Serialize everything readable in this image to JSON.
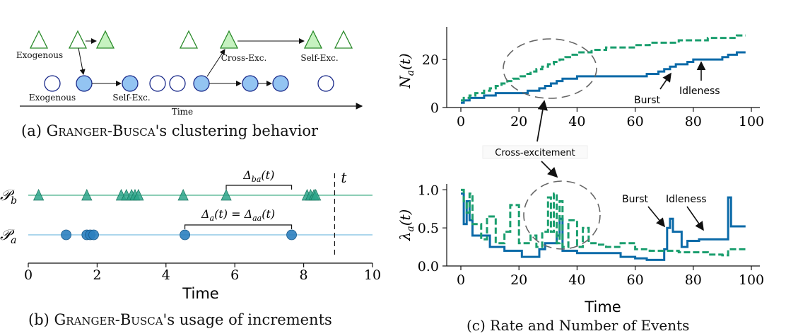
{
  "panel_a": {
    "caption_prefix": "(a)",
    "caption_name": "Granger-Busca",
    "caption_rest": "'s clustering behavior",
    "labels": {
      "exogenous_top": "Exogenous",
      "exogenous_bottom": "Exogenous",
      "self_exc_bottom": "Self-Exc.",
      "cross_exc": "Cross-Exc.",
      "self_exc_top": "Self-Exc.",
      "time": "Time"
    }
  },
  "panel_b": {
    "caption_prefix": "(b)",
    "caption_name": "Granger-Busca",
    "caption_rest": "'s usage of increments",
    "t_label": "t",
    "row_b_label": "𝒫_b",
    "row_a_label": "𝒫_a",
    "delta_b_label": "Δ_ba(t)",
    "delta_a_label": "Δ_a(t) = Δ_aa(t)",
    "xlabel": "Time",
    "xticks": [
      "0",
      "2",
      "4",
      "6",
      "8",
      "10"
    ]
  },
  "panel_c": {
    "caption": "(c) Rate and Number of Events",
    "annotation_cross": "Cross-excitement",
    "top": {
      "ylabel": "N_a(t)",
      "yticks": [
        "0",
        "20"
      ],
      "xticks": [
        "0",
        "20",
        "40",
        "60",
        "80",
        "100"
      ],
      "burst_label": "Burst",
      "idleness_label": "Idleness"
    },
    "bottom": {
      "ylabel": "λ_a(t)",
      "yticks": [
        "0.0",
        "0.5",
        "1.0"
      ],
      "xticks": [
        "0",
        "20",
        "40",
        "60",
        "80",
        "100"
      ],
      "xlabel": "Time",
      "burst_label": "Burst",
      "idleness_label": "Idleness"
    }
  },
  "colors": {
    "blue": "#1f77b4",
    "blue_dark": "#0b6aa8",
    "green": "#1a9e6e",
    "green_fill": "#c6f2c0",
    "triangle_stroke": "#2a8a2a",
    "circle_fill": "#93c4f2",
    "circle_stroke": "#1a2a8a"
  },
  "chart_data": [
    {
      "type": "scatter",
      "panel": "b",
      "xlim": [
        0,
        10
      ],
      "series": [
        {
          "name": "𝒫_b",
          "x": [
            0.3,
            1.7,
            2.7,
            2.85,
            3.0,
            3.1,
            3.2,
            4.5,
            5.75,
            8.1,
            8.2,
            8.3,
            8.35
          ]
        },
        {
          "name": "𝒫_a",
          "x": [
            1.1,
            1.7,
            1.8,
            1.9,
            4.55,
            7.65
          ]
        }
      ],
      "t_marker": 8.9,
      "delta_ba": [
        5.75,
        7.65
      ],
      "delta_aa": [
        4.55,
        7.65
      ]
    },
    {
      "type": "line",
      "panel": "c-top",
      "xlim": [
        -3,
        102
      ],
      "ylim": [
        0,
        33
      ],
      "series": [
        {
          "x": [
            0,
            1,
            3,
            8,
            12,
            20,
            23,
            25,
            27,
            29,
            31,
            33,
            35,
            40,
            45,
            50,
            55,
            60,
            62,
            64,
            66,
            68,
            70,
            72,
            74,
            76,
            78,
            80,
            85,
            88,
            90,
            92,
            95,
            98
          ],
          "y": [
            2,
            3,
            4,
            5,
            6,
            6,
            7,
            7,
            8,
            9,
            10,
            11,
            12,
            13,
            13,
            13,
            13,
            13,
            13,
            14,
            14,
            15,
            16,
            17,
            18,
            18,
            19,
            20,
            20,
            20,
            21,
            22,
            23,
            23
          ]
        },
        {
          "x": [
            0,
            1,
            3,
            5,
            8,
            10,
            12,
            14,
            16,
            18,
            20,
            22,
            24,
            26,
            28,
            30,
            32,
            34,
            36,
            38,
            40,
            45,
            50,
            55,
            60,
            65,
            70,
            75,
            80,
            85,
            90,
            95,
            98
          ],
          "y": [
            3,
            4,
            5,
            6,
            7,
            8,
            9,
            10,
            11,
            12,
            13,
            14,
            15,
            16,
            17,
            18,
            19,
            20,
            21,
            22,
            23,
            24,
            25,
            25,
            26,
            27,
            27,
            28,
            28,
            29,
            29,
            30,
            30
          ]
        }
      ]
    },
    {
      "type": "line",
      "panel": "c-bottom",
      "xlim": [
        -3,
        102
      ],
      "ylim": [
        0,
        1.05
      ],
      "series": [
        {
          "x": [
            0,
            1,
            2,
            3,
            4,
            10,
            15,
            21,
            27,
            29,
            33,
            34,
            35,
            36,
            40,
            48,
            55,
            60,
            64,
            70,
            71,
            72,
            73,
            76,
            78,
            82,
            88,
            92,
            93,
            94,
            98
          ],
          "y": [
            0.95,
            0.55,
            0.85,
            0.6,
            0.4,
            0.25,
            0.2,
            0.12,
            0.22,
            0.3,
            0.4,
            0.62,
            0.2,
            0.2,
            0.17,
            0.17,
            0.12,
            0.1,
            0.08,
            0.22,
            0.5,
            0.62,
            0.45,
            0.25,
            0.33,
            0.35,
            0.35,
            0.9,
            0.52,
            0.52,
            0.52
          ]
        },
        {
          "x": [
            0,
            1,
            2,
            3,
            4,
            7,
            9,
            12,
            15,
            17,
            20,
            24,
            26,
            28,
            30,
            31,
            32,
            33,
            34,
            35,
            37,
            40,
            42,
            44,
            47,
            50,
            55,
            60,
            65,
            70,
            75,
            80,
            85,
            90,
            92,
            95,
            98
          ],
          "y": [
            1.0,
            0.85,
            0.7,
            0.95,
            0.55,
            0.35,
            0.65,
            0.3,
            0.45,
            0.8,
            0.3,
            0.4,
            0.25,
            0.45,
            0.9,
            0.45,
            0.95,
            0.3,
            0.85,
            0.25,
            0.6,
            0.25,
            0.5,
            0.3,
            0.28,
            0.25,
            0.3,
            0.22,
            0.2,
            0.2,
            0.18,
            0.18,
            0.15,
            0.14,
            0.22,
            0.22,
            0.22
          ]
        }
      ]
    }
  ]
}
